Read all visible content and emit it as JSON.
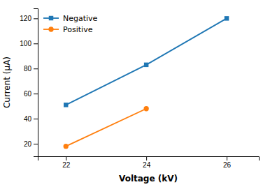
{
  "chart_data": {
    "type": "line",
    "xlabel": "Voltage (kV)",
    "ylabel": "Current (μA)",
    "series": [
      {
        "name": "Negative",
        "x": [
          22,
          24,
          26
        ],
        "values": [
          51,
          83,
          120
        ],
        "marker": "square"
      },
      {
        "name": "Positive",
        "x": [
          22,
          24
        ],
        "values": [
          18,
          48
        ],
        "marker": "circle"
      }
    ],
    "xlim": [
      21.3,
      26.8
    ],
    "ylim": [
      10,
      128
    ],
    "xticks": [
      22,
      24,
      26
    ],
    "yticks": [
      20,
      40,
      60,
      80,
      100,
      120
    ],
    "grid": false,
    "legend": "upper left"
  }
}
